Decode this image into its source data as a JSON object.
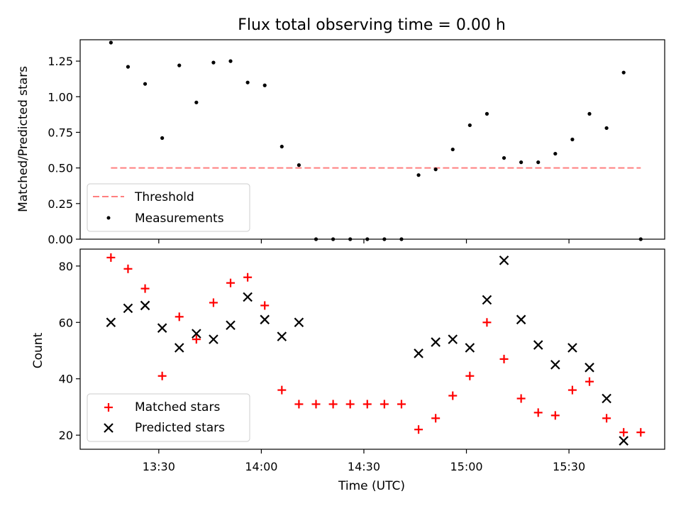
{
  "chart_data": [
    {
      "type": "line+scatter",
      "title": "Flux total observing time = 0.00 h",
      "xlabel": "",
      "ylabel": "Matched/Predicted stars",
      "ylim": [
        0.0,
        1.4
      ],
      "yticks": [
        "0.00",
        "0.25",
        "0.50",
        "0.75",
        "1.00",
        "1.25"
      ],
      "threshold": {
        "name": "Threshold",
        "value": 0.5,
        "x_start": "13:16",
        "x_end": "15:51",
        "color": "#ff7f7f"
      },
      "series": [
        {
          "name": "Measurements",
          "color": "#000000",
          "points": [
            [
              "13:16",
              1.38
            ],
            [
              "13:21",
              1.21
            ],
            [
              "13:26",
              1.09
            ],
            [
              "13:31",
              0.71
            ],
            [
              "13:36",
              1.22
            ],
            [
              "13:41",
              0.96
            ],
            [
              "13:46",
              1.24
            ],
            [
              "13:51",
              1.25
            ],
            [
              "13:56",
              1.1
            ],
            [
              "14:01",
              1.08
            ],
            [
              "14:06",
              0.65
            ],
            [
              "14:11",
              0.52
            ],
            [
              "14:16",
              0.0
            ],
            [
              "14:21",
              0.0
            ],
            [
              "14:26",
              0.0
            ],
            [
              "14:31",
              0.0
            ],
            [
              "14:36",
              0.0
            ],
            [
              "14:41",
              0.0
            ],
            [
              "14:46",
              0.45
            ],
            [
              "14:51",
              0.49
            ],
            [
              "14:56",
              0.63
            ],
            [
              "15:01",
              0.8
            ],
            [
              "15:06",
              0.88
            ],
            [
              "15:11",
              0.57
            ],
            [
              "15:16",
              0.54
            ],
            [
              "15:21",
              0.54
            ],
            [
              "15:26",
              0.6
            ],
            [
              "15:31",
              0.7
            ],
            [
              "15:36",
              0.88
            ],
            [
              "15:41",
              0.78
            ],
            [
              "15:46",
              1.17
            ],
            [
              "15:51",
              0.0
            ]
          ]
        }
      ],
      "legend": {
        "position": "lower-left",
        "entries": [
          "Threshold",
          "Measurements"
        ]
      }
    },
    {
      "type": "scatter",
      "xlabel": "Time (UTC)",
      "ylabel": "Count",
      "ylim": [
        15,
        86
      ],
      "yticks": [
        "20",
        "40",
        "60",
        "80"
      ],
      "xlim": [
        "13:07",
        "15:58"
      ],
      "xticks": [
        "13:30",
        "14:00",
        "14:30",
        "15:00",
        "15:30"
      ],
      "series": [
        {
          "name": "Matched stars",
          "marker": "+",
          "color": "#ff0000",
          "points": [
            [
              "13:16",
              83
            ],
            [
              "13:21",
              79
            ],
            [
              "13:26",
              72
            ],
            [
              "13:31",
              41
            ],
            [
              "13:36",
              62
            ],
            [
              "13:41",
              54
            ],
            [
              "13:46",
              67
            ],
            [
              "13:51",
              74
            ],
            [
              "13:56",
              76
            ],
            [
              "14:01",
              66
            ],
            [
              "14:06",
              36
            ],
            [
              "14:11",
              31
            ],
            [
              "14:16",
              31
            ],
            [
              "14:21",
              31
            ],
            [
              "14:26",
              31
            ],
            [
              "14:31",
              31
            ],
            [
              "14:36",
              31
            ],
            [
              "14:41",
              31
            ],
            [
              "14:46",
              22
            ],
            [
              "14:51",
              26
            ],
            [
              "14:56",
              34
            ],
            [
              "15:01",
              41
            ],
            [
              "15:06",
              60
            ],
            [
              "15:11",
              47
            ],
            [
              "15:16",
              33
            ],
            [
              "15:21",
              28
            ],
            [
              "15:26",
              27
            ],
            [
              "15:31",
              36
            ],
            [
              "15:36",
              39
            ],
            [
              "15:41",
              26
            ],
            [
              "15:46",
              21
            ],
            [
              "15:51",
              21
            ]
          ]
        },
        {
          "name": "Predicted stars",
          "marker": "x",
          "color": "#000000",
          "points": [
            [
              "13:16",
              60
            ],
            [
              "13:21",
              65
            ],
            [
              "13:26",
              66
            ],
            [
              "13:31",
              58
            ],
            [
              "13:36",
              51
            ],
            [
              "13:41",
              56
            ],
            [
              "13:46",
              54
            ],
            [
              "13:51",
              59
            ],
            [
              "13:56",
              69
            ],
            [
              "14:01",
              61
            ],
            [
              "14:06",
              55
            ],
            [
              "14:11",
              60
            ],
            [
              "14:46",
              49
            ],
            [
              "14:51",
              53
            ],
            [
              "14:56",
              54
            ],
            [
              "15:01",
              51
            ],
            [
              "15:06",
              68
            ],
            [
              "15:11",
              82
            ],
            [
              "15:16",
              61
            ],
            [
              "15:21",
              52
            ],
            [
              "15:26",
              45
            ],
            [
              "15:31",
              51
            ],
            [
              "15:36",
              44
            ],
            [
              "15:41",
              33
            ],
            [
              "15:46",
              18
            ]
          ]
        }
      ],
      "legend": {
        "position": "lower-left",
        "entries": [
          "Matched stars",
          "Predicted stars"
        ]
      }
    }
  ]
}
